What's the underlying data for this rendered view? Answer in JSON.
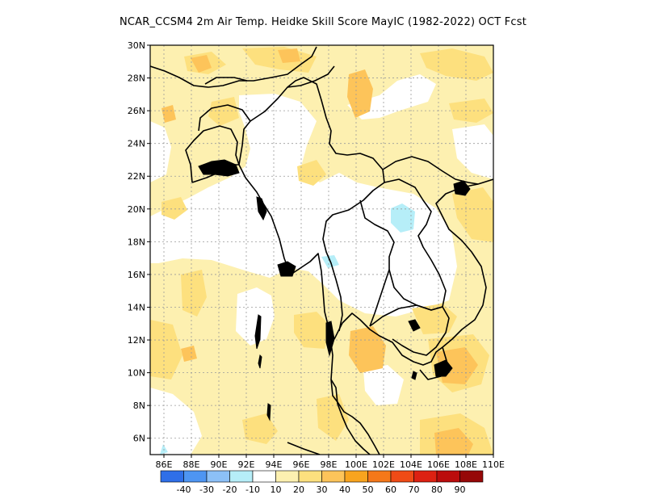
{
  "title": "NCAR_CCSM4 2m Air Temp. Heidke Skill Score MayIC (1982-2022) OCT Fcst",
  "map": {
    "lon_labels": [
      "86E",
      "88E",
      "90E",
      "92E",
      "94E",
      "96E",
      "98E",
      "100E",
      "102E",
      "104E",
      "106E",
      "108E",
      "110E"
    ],
    "lat_labels": [
      "30N",
      "28N",
      "26N",
      "24N",
      "22N",
      "20N",
      "18N",
      "16N",
      "14N",
      "12N",
      "10N",
      "8N",
      "6N"
    ]
  },
  "colorbar": {
    "colors": [
      "#2f6fe8",
      "#4e95f2",
      "#8cc0f7",
      "#b6eef8",
      "#ffffff",
      "#fdf0b0",
      "#fde07e",
      "#fdc45a",
      "#f8a41e",
      "#f5781a",
      "#ef4b16",
      "#dd2112",
      "#bb0c0c",
      "#960808"
    ],
    "labels": [
      "-40",
      "-30",
      "-20",
      "-10",
      "10",
      "20",
      "30",
      "40",
      "50",
      "60",
      "70",
      "80",
      "90"
    ]
  }
}
